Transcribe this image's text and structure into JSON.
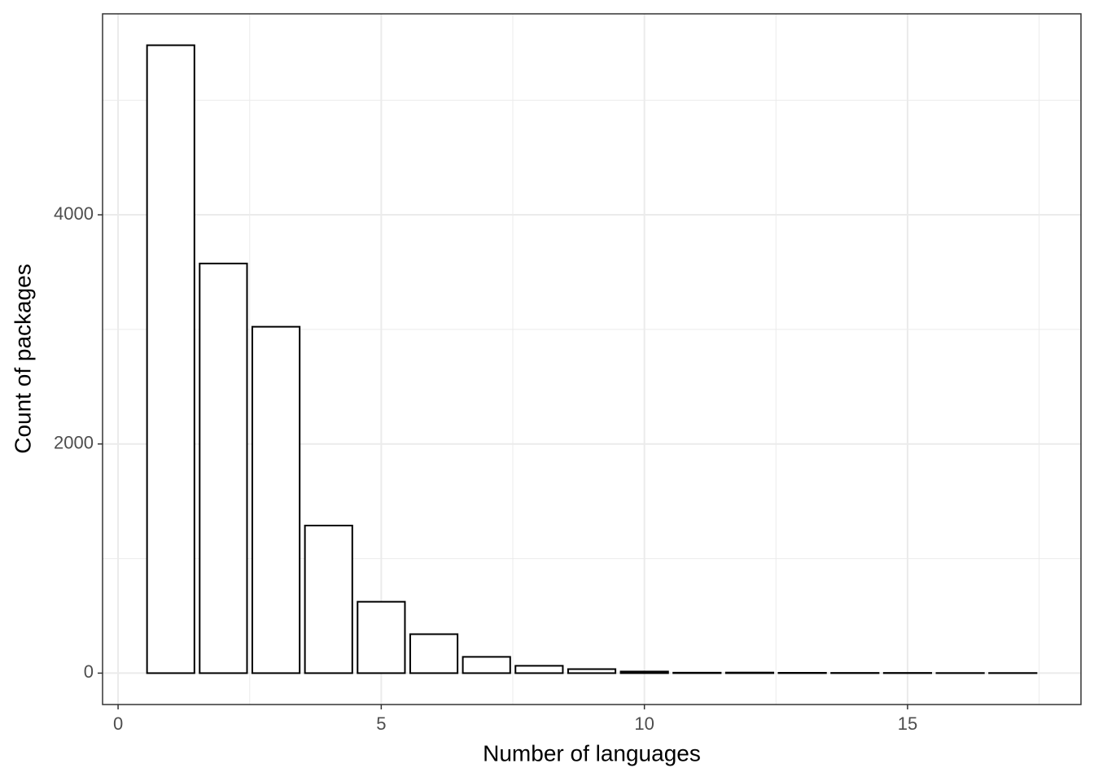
{
  "chart_data": {
    "type": "bar",
    "x_label": "Number of languages",
    "y_label": "Count of packages",
    "x": [
      1,
      2,
      3,
      4,
      5,
      6,
      7,
      8,
      9,
      10,
      11,
      12,
      13,
      14,
      15,
      16,
      17
    ],
    "values": [
      5480,
      3575,
      3023,
      1288,
      623,
      340,
      142,
      64,
      35,
      14,
      4,
      5,
      3,
      2,
      2,
      1,
      1
    ],
    "bar_width": 0.9,
    "fill": "#ffffff",
    "stroke": "#000000",
    "xlim": [
      -0.295,
      18.295
    ],
    "xticks": [
      0,
      5,
      10,
      15
    ],
    "x_minor_ticks": [
      2.5,
      7.5,
      12.5,
      17.5
    ],
    "ylim": [
      -274,
      5754
    ],
    "yticks": [
      0,
      2000,
      4000
    ],
    "y_minor_ticks": [
      1000,
      3000,
      5000
    ],
    "grid": true
  }
}
